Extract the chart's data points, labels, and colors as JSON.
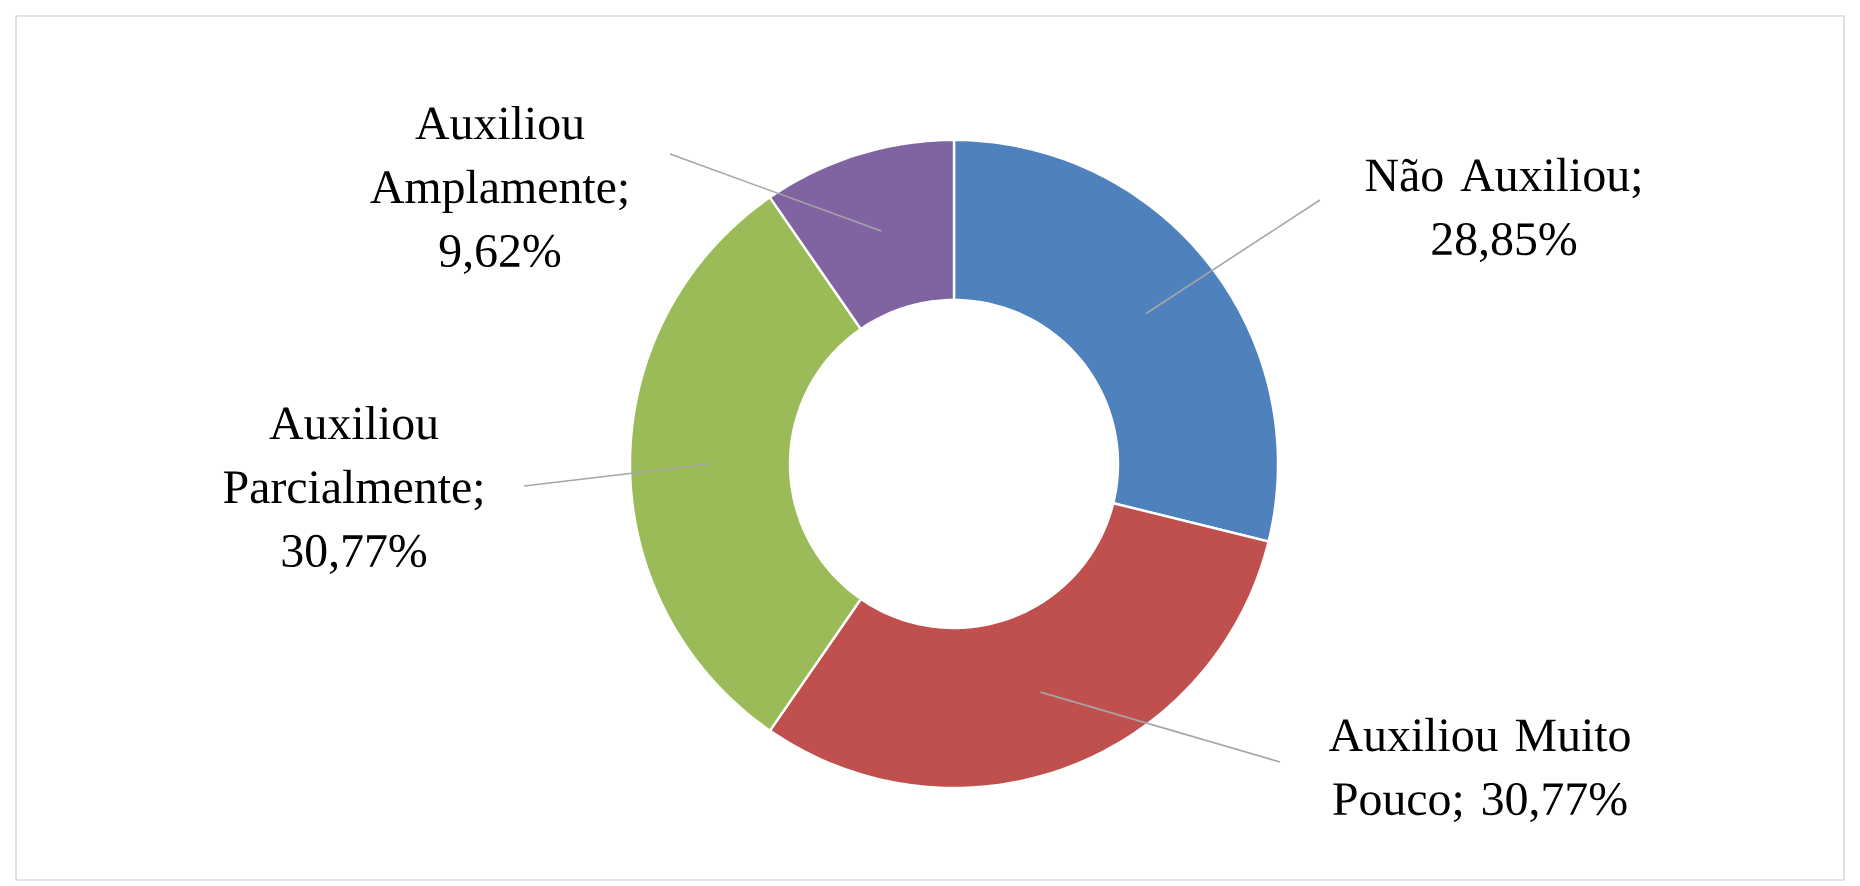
{
  "chart_data": {
    "type": "donut",
    "categories": [
      "Não Auxiliou",
      "Auxiliou Muito Pouco",
      "Auxiliou Parcialmente",
      "Auxiliou Amplamente"
    ],
    "values": [
      28.85,
      30.77,
      30.77,
      9.62
    ],
    "colors": [
      "#4f81bd",
      "#c0504d",
      "#9bbb59",
      "#8064a2"
    ],
    "value_labels": [
      "; 28,85%",
      "; 30,77%",
      "; 30,77%",
      "; 9,62%"
    ]
  }
}
